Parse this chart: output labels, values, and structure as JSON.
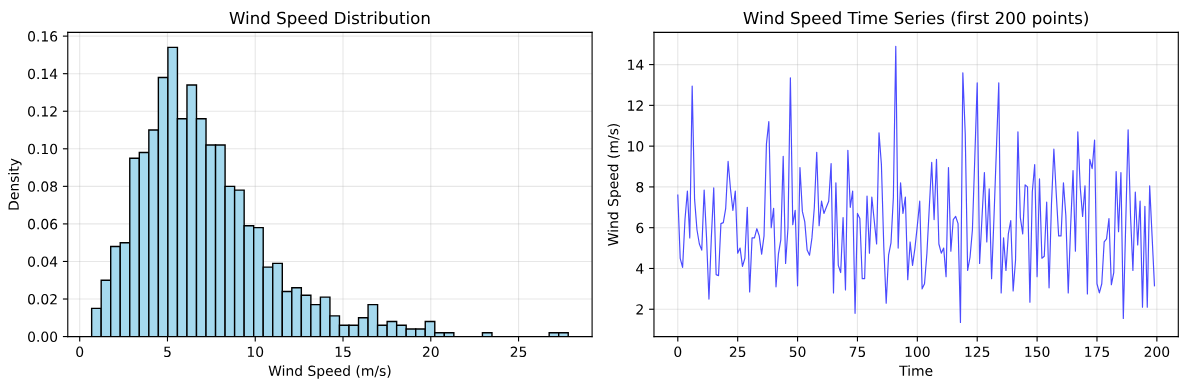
{
  "chart_data": [
    {
      "type": "histogram",
      "title": "Wind Speed Distribution",
      "xlabel": "Wind Speed (m/s)",
      "ylabel": "Density",
      "color": "#a5d9ee",
      "bins": [
        0.68,
        1.223,
        1.766,
        2.309,
        2.852,
        3.395,
        3.938,
        4.481,
        5.024,
        5.567,
        6.11,
        6.653,
        7.196,
        7.739,
        8.282,
        8.825,
        9.368,
        9.911,
        10.454,
        10.997,
        11.54,
        12.083,
        12.626,
        13.169,
        13.712,
        14.255,
        14.798,
        15.341,
        15.884,
        16.427,
        16.97,
        17.513,
        18.056,
        18.599,
        19.142,
        19.685,
        20.228,
        20.771,
        21.314,
        21.857,
        22.4,
        22.943,
        23.486,
        24.029,
        24.572,
        25.115,
        25.658,
        26.201,
        26.744,
        27.287,
        27.83
      ],
      "values": [
        0.015,
        0.03,
        0.048,
        0.05,
        0.095,
        0.098,
        0.11,
        0.138,
        0.154,
        0.116,
        0.134,
        0.116,
        0.102,
        0.102,
        0.08,
        0.078,
        0.059,
        0.058,
        0.037,
        0.039,
        0.024,
        0.026,
        0.022,
        0.017,
        0.021,
        0.011,
        0.006,
        0.006,
        0.01,
        0.017,
        0.006,
        0.008,
        0.006,
        0.004,
        0.004,
        0.008,
        0.002,
        0.002,
        0,
        0,
        0,
        0.002,
        0,
        0,
        0,
        0,
        0,
        0,
        0.002,
        0.002
      ],
      "xlim": [
        -0.68,
        29.19
      ],
      "xticks": [
        0,
        5,
        10,
        15,
        20,
        25
      ],
      "ylim": [
        0,
        0.162
      ],
      "yticks": [
        {
          "value": 0,
          "label": "0.00"
        },
        {
          "value": 0.02,
          "label": "0.02"
        },
        {
          "value": 0.04,
          "label": "0.04"
        },
        {
          "value": 0.06,
          "label": "0.06"
        },
        {
          "value": 0.08,
          "label": "0.08"
        },
        {
          "value": 0.1,
          "label": "0.10"
        },
        {
          "value": 0.12,
          "label": "0.12"
        },
        {
          "value": 0.14,
          "label": "0.14"
        },
        {
          "value": 0.16,
          "label": "0.16"
        }
      ],
      "grid": true
    },
    {
      "type": "line",
      "title": "Wind Speed Time Series (first 200 points)",
      "xlabel": "Time",
      "ylabel": "Wind Speed (m/s)",
      "color": "#4b4bff",
      "marker": "none",
      "line_style": "solid",
      "x": [
        0,
        1,
        2,
        3,
        4,
        5,
        6,
        7,
        8,
        9,
        10,
        11,
        12,
        13,
        14,
        15,
        16,
        17,
        18,
        19,
        20,
        21,
        22,
        23,
        24,
        25,
        26,
        27,
        28,
        29,
        30,
        31,
        32,
        33,
        34,
        35,
        36,
        37,
        38,
        39,
        40,
        41,
        42,
        43,
        44,
        45,
        46,
        47,
        48,
        49,
        50,
        51,
        52,
        53,
        54,
        55,
        56,
        57,
        58,
        59,
        60,
        61,
        62,
        63,
        64,
        65,
        66,
        67,
        68,
        69,
        70,
        71,
        72,
        73,
        74,
        75,
        76,
        77,
        78,
        79,
        80,
        81,
        82,
        83,
        84,
        85,
        86,
        87,
        88,
        89,
        90,
        91,
        92,
        93,
        94,
        95,
        96,
        97,
        98,
        99,
        100,
        101,
        102,
        103,
        104,
        105,
        106,
        107,
        108,
        109,
        110,
        111,
        112,
        113,
        114,
        115,
        116,
        117,
        118,
        119,
        120,
        121,
        122,
        123,
        124,
        125,
        126,
        127,
        128,
        129,
        130,
        131,
        132,
        133,
        134,
        135,
        136,
        137,
        138,
        139,
        140,
        141,
        142,
        143,
        144,
        145,
        146,
        147,
        148,
        149,
        150,
        151,
        152,
        153,
        154,
        155,
        156,
        157,
        158,
        159,
        160,
        161,
        162,
        163,
        164,
        165,
        166,
        167,
        168,
        169,
        170,
        171,
        172,
        173,
        174,
        175,
        176,
        177,
        178,
        179,
        180,
        181,
        182,
        183,
        184,
        185,
        186,
        187,
        188,
        189,
        190,
        191,
        192,
        193,
        194,
        195,
        196,
        197,
        198,
        199
      ],
      "values": [
        7.6,
        4.5,
        4.05,
        6.4,
        7.8,
        5.5,
        12.95,
        7.4,
        5.9,
        5.2,
        4.9,
        7.85,
        5.5,
        2.5,
        5.5,
        7.95,
        3.7,
        3.65,
        6.2,
        6.25,
        6.95,
        9.25,
        7.9,
        6.85,
        7.8,
        4.75,
        5.0,
        4.1,
        4.5,
        7.0,
        2.85,
        5.5,
        5.5,
        5.95,
        5.6,
        4.7,
        5.6,
        10.1,
        11.2,
        6.0,
        6.95,
        3.1,
        4.7,
        5.4,
        9.5,
        4.25,
        6.0,
        13.35,
        6.15,
        6.85,
        3.15,
        8.95,
        6.8,
        6.3,
        4.9,
        4.65,
        5.5,
        7.0,
        9.7,
        6.1,
        7.3,
        6.7,
        7.0,
        7.3,
        9.15,
        2.8,
        8.2,
        4.15,
        3.8,
        6.5,
        2.95,
        9.8,
        7.0,
        7.8,
        1.8,
        6.7,
        6.45,
        3.5,
        3.5,
        7.55,
        4.75,
        7.5,
        6.35,
        5.2,
        10.65,
        9.1,
        5.05,
        2.3,
        4.65,
        5.25,
        7.5,
        14.9,
        5.0,
        8.2,
        6.7,
        7.5,
        3.45,
        5.3,
        4.15,
        5.0,
        6.1,
        7.3,
        3.0,
        3.25,
        4.75,
        7.0,
        9.2,
        6.4,
        9.35,
        5.2,
        4.75,
        5.0,
        3.6,
        8.95,
        4.85,
        6.4,
        6.55,
        6.2,
        1.35,
        13.6,
        10.6,
        3.9,
        4.55,
        5.9,
        9.45,
        13.1,
        4.25,
        6.5,
        8.7,
        5.3,
        7.9,
        3.5,
        6.5,
        9.8,
        13.1,
        2.8,
        5.5,
        3.9,
        5.7,
        6.35,
        2.9,
        4.4,
        10.7,
        6.5,
        5.7,
        8.1,
        8.0,
        2.35,
        7.75,
        9.1,
        3.6,
        8.4,
        4.5,
        4.6,
        7.25,
        3.05,
        7.15,
        9.85,
        7.65,
        5.6,
        5.6,
        8.2,
        6.6,
        2.8,
        6.05,
        8.8,
        4.85,
        10.7,
        8.0,
        6.55,
        8.05,
        2.75,
        9.35,
        8.9,
        10.3,
        3.25,
        2.8,
        3.25,
        5.3,
        5.45,
        6.45,
        3.2,
        3.8,
        8.75,
        5.8,
        8.7,
        1.55,
        6.2,
        10.8,
        6.6,
        3.9,
        7.75,
        5.15,
        7.3,
        2.1,
        7.05,
        2.1,
        8.05,
        5.6,
        3.15
      ],
      "xlim": [
        -9.95,
        208.95
      ],
      "xticks": [
        0,
        25,
        50,
        75,
        100,
        125,
        150,
        175,
        200
      ],
      "ylim": [
        0.66,
        15.58
      ],
      "yticks": [
        2,
        4,
        6,
        8,
        10,
        12,
        14
      ],
      "grid": true
    }
  ]
}
